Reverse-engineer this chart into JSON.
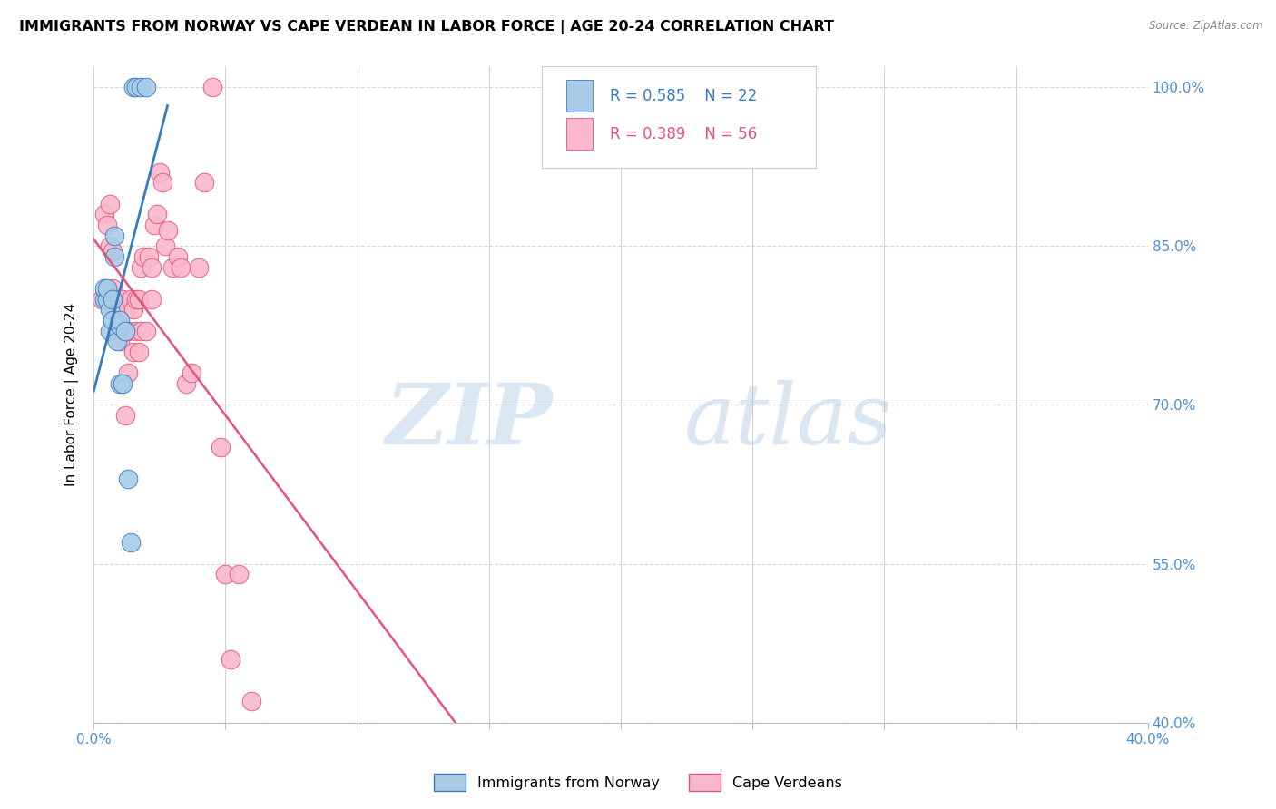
{
  "title": "IMMIGRANTS FROM NORWAY VS CAPE VERDEAN IN LABOR FORCE | AGE 20-24 CORRELATION CHART",
  "source": "Source: ZipAtlas.com",
  "ylabel": "In Labor Force | Age 20-24",
  "xlim": [
    0.0,
    0.4
  ],
  "ylim": [
    0.4,
    1.02
  ],
  "xticks": [
    0.0,
    0.05,
    0.1,
    0.15,
    0.2,
    0.25,
    0.3,
    0.35,
    0.4
  ],
  "yticks": [
    0.4,
    0.55,
    0.7,
    0.85,
    1.0
  ],
  "yticklabels": [
    "40.0%",
    "55.0%",
    "70.0%",
    "85.0%",
    "100.0%"
  ],
  "norway_R": 0.585,
  "norway_N": 22,
  "cv_R": 0.389,
  "cv_N": 56,
  "norway_color": "#a8cce8",
  "cv_color": "#f9b8cb",
  "norway_line_color": "#3a7bbf",
  "cv_line_color": "#e8527a",
  "norway_x": [
    0.004,
    0.004,
    0.005,
    0.005,
    0.006,
    0.006,
    0.007,
    0.007,
    0.008,
    0.008,
    0.009,
    0.01,
    0.01,
    0.01,
    0.011,
    0.012,
    0.013,
    0.014,
    0.015,
    0.016,
    0.018,
    0.02
  ],
  "norway_y": [
    0.8,
    0.81,
    0.8,
    0.81,
    0.79,
    0.77,
    0.8,
    0.78,
    0.84,
    0.86,
    0.76,
    0.775,
    0.78,
    0.72,
    0.72,
    0.77,
    0.63,
    0.57,
    1.0,
    1.0,
    1.0,
    1.0
  ],
  "cv_x": [
    0.003,
    0.004,
    0.005,
    0.005,
    0.006,
    0.006,
    0.007,
    0.007,
    0.008,
    0.008,
    0.008,
    0.009,
    0.009,
    0.01,
    0.01,
    0.01,
    0.011,
    0.011,
    0.012,
    0.012,
    0.012,
    0.013,
    0.013,
    0.014,
    0.015,
    0.015,
    0.016,
    0.016,
    0.017,
    0.017,
    0.018,
    0.018,
    0.019,
    0.02,
    0.021,
    0.022,
    0.022,
    0.023,
    0.024,
    0.025,
    0.026,
    0.027,
    0.028,
    0.03,
    0.032,
    0.033,
    0.035,
    0.037,
    0.04,
    0.042,
    0.045,
    0.048,
    0.05,
    0.052,
    0.055,
    0.06
  ],
  "cv_y": [
    0.8,
    0.88,
    0.8,
    0.87,
    0.89,
    0.85,
    0.845,
    0.81,
    0.79,
    0.8,
    0.8,
    0.79,
    0.77,
    0.8,
    0.79,
    0.76,
    0.77,
    0.8,
    0.77,
    0.79,
    0.69,
    0.73,
    0.77,
    0.8,
    0.75,
    0.79,
    0.77,
    0.8,
    0.8,
    0.75,
    0.77,
    0.83,
    0.84,
    0.77,
    0.84,
    0.83,
    0.8,
    0.87,
    0.88,
    0.92,
    0.91,
    0.85,
    0.865,
    0.83,
    0.84,
    0.83,
    0.72,
    0.73,
    0.83,
    0.91,
    1.0,
    0.66,
    0.54,
    0.46,
    0.54,
    0.42
  ],
  "watermark_zip": "ZIP",
  "watermark_atlas": "atlas",
  "background_color": "#ffffff",
  "grid_color": "#d8d8d8",
  "axis_color": "#bbbbbb",
  "tick_color": "#4a90d9",
  "title_fontsize": 11.5,
  "label_fontsize": 11,
  "tick_fontsize": 11,
  "legend_fontsize": 12
}
